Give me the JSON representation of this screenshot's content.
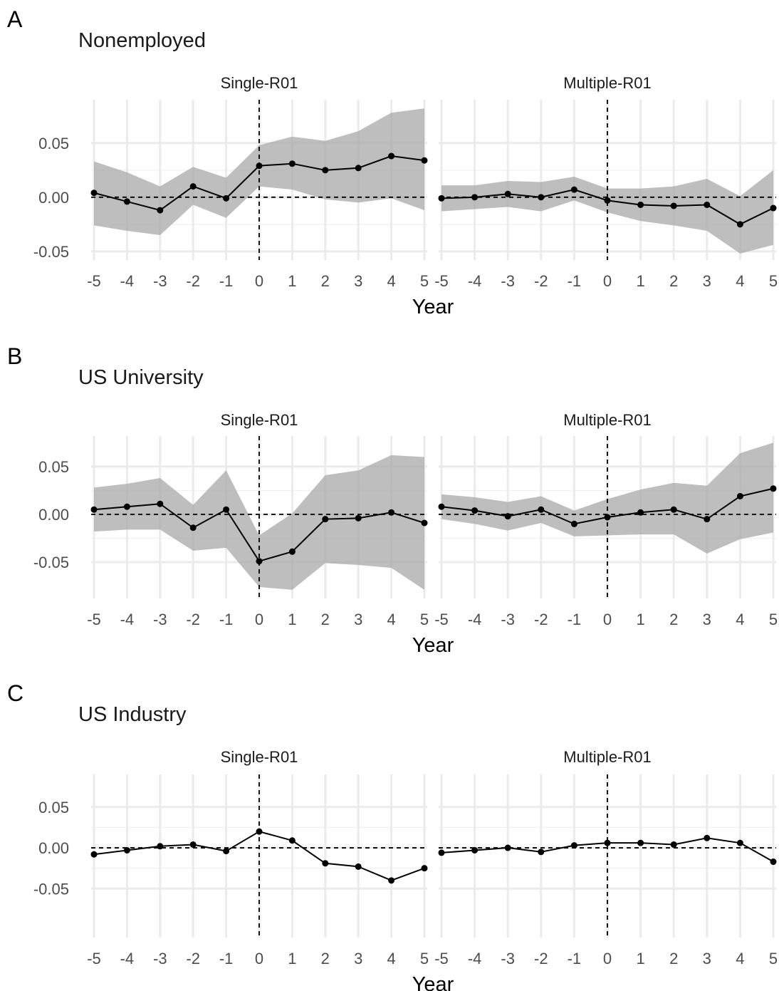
{
  "chart_data": [
    {
      "type": "line",
      "panel_letter": "A",
      "title": "Nonemployed",
      "xlabel": "Year",
      "x": [
        -5,
        -4,
        -3,
        -2,
        -1,
        0,
        1,
        2,
        3,
        4,
        5
      ],
      "x_ticks": [
        "-5",
        "-4",
        "-3",
        "-2",
        "-1",
        "0",
        "1",
        "2",
        "3",
        "4",
        "5"
      ],
      "y_ticks": [
        "0.05",
        "0.00",
        "-0.05"
      ],
      "y_tick_values": [
        0.05,
        0.0,
        -0.05
      ],
      "ylim": [
        -0.058,
        0.09
      ],
      "xlim": [
        -5.2,
        5.2
      ],
      "has_ci": true,
      "facets": [
        {
          "strip": "Single-R01",
          "values": [
            0.004,
            -0.004,
            -0.012,
            0.01,
            -0.001,
            0.029,
            0.031,
            0.025,
            0.027,
            0.038,
            0.034
          ],
          "lower": [
            -0.026,
            -0.031,
            -0.035,
            -0.007,
            -0.019,
            0.01,
            0.007,
            -0.002,
            -0.005,
            -0.001,
            -0.012
          ],
          "upper": [
            0.033,
            0.023,
            0.01,
            0.028,
            0.018,
            0.048,
            0.056,
            0.052,
            0.061,
            0.078,
            0.082
          ]
        },
        {
          "strip": "Multiple-R01",
          "values": [
            -0.001,
            0.0,
            0.003,
            0.0,
            0.007,
            -0.003,
            -0.007,
            -0.008,
            -0.007,
            -0.025,
            -0.01
          ],
          "lower": [
            -0.013,
            -0.011,
            -0.009,
            -0.013,
            -0.003,
            -0.014,
            -0.022,
            -0.026,
            -0.031,
            -0.052,
            -0.044
          ],
          "upper": [
            0.011,
            0.011,
            0.015,
            0.014,
            0.019,
            0.008,
            0.008,
            0.01,
            0.017,
            0.001,
            0.025
          ]
        }
      ]
    },
    {
      "type": "line",
      "panel_letter": "B",
      "title": "US University",
      "xlabel": "Year",
      "x": [
        -5,
        -4,
        -3,
        -2,
        -1,
        0,
        1,
        2,
        3,
        4,
        5
      ],
      "x_ticks": [
        "-5",
        "-4",
        "-3",
        "-2",
        "-1",
        "0",
        "1",
        "2",
        "3",
        "4",
        "5"
      ],
      "y_ticks": [
        "0.05",
        "0.00",
        "-0.05"
      ],
      "y_tick_values": [
        0.05,
        0.0,
        -0.05
      ],
      "ylim": [
        -0.088,
        0.082
      ],
      "xlim": [
        -5.2,
        5.2
      ],
      "has_ci": true,
      "facets": [
        {
          "strip": "Single-R01",
          "values": [
            0.005,
            0.008,
            0.011,
            -0.014,
            0.005,
            -0.049,
            -0.039,
            -0.005,
            -0.004,
            0.002,
            -0.009
          ],
          "lower": [
            -0.018,
            -0.016,
            -0.016,
            -0.038,
            -0.035,
            -0.076,
            -0.079,
            -0.051,
            -0.053,
            -0.056,
            -0.079
          ],
          "upper": [
            0.028,
            0.032,
            0.038,
            0.01,
            0.046,
            -0.022,
            0.001,
            0.041,
            0.046,
            0.062,
            0.06
          ]
        },
        {
          "strip": "Multiple-R01",
          "values": [
            0.008,
            0.004,
            -0.002,
            0.005,
            -0.01,
            -0.003,
            0.002,
            0.005,
            -0.005,
            0.019,
            0.027
          ],
          "lower": [
            -0.005,
            -0.01,
            -0.017,
            -0.009,
            -0.023,
            -0.022,
            -0.021,
            -0.021,
            -0.041,
            -0.026,
            -0.019
          ],
          "upper": [
            0.021,
            0.018,
            0.013,
            0.019,
            0.004,
            0.016,
            0.026,
            0.033,
            0.03,
            0.064,
            0.075
          ]
        }
      ]
    },
    {
      "type": "line",
      "panel_letter": "C",
      "title": "US Industry",
      "xlabel": "Year",
      "x": [
        -5,
        -4,
        -3,
        -2,
        -1,
        0,
        1,
        2,
        3,
        4,
        5
      ],
      "x_ticks": [
        "-5",
        "-4",
        "-3",
        "-2",
        "-1",
        "0",
        "1",
        "2",
        "3",
        "4",
        "5"
      ],
      "y_ticks": [
        "0.05",
        "0.00",
        "-0.05"
      ],
      "y_tick_values": [
        0.05,
        0.0,
        -0.05
      ],
      "ylim": [
        -0.11,
        0.09
      ],
      "xlim": [
        -5.2,
        5.2
      ],
      "has_ci": false,
      "facets": [
        {
          "strip": "Single-R01",
          "values": [
            -0.008,
            -0.003,
            0.002,
            0.004,
            -0.004,
            0.02,
            0.009,
            -0.019,
            -0.023,
            -0.04,
            -0.025
          ]
        },
        {
          "strip": "Multiple-R01",
          "values": [
            -0.006,
            -0.003,
            0.0,
            -0.005,
            0.003,
            0.006,
            0.006,
            0.004,
            0.012,
            0.006,
            -0.017
          ]
        }
      ]
    }
  ]
}
